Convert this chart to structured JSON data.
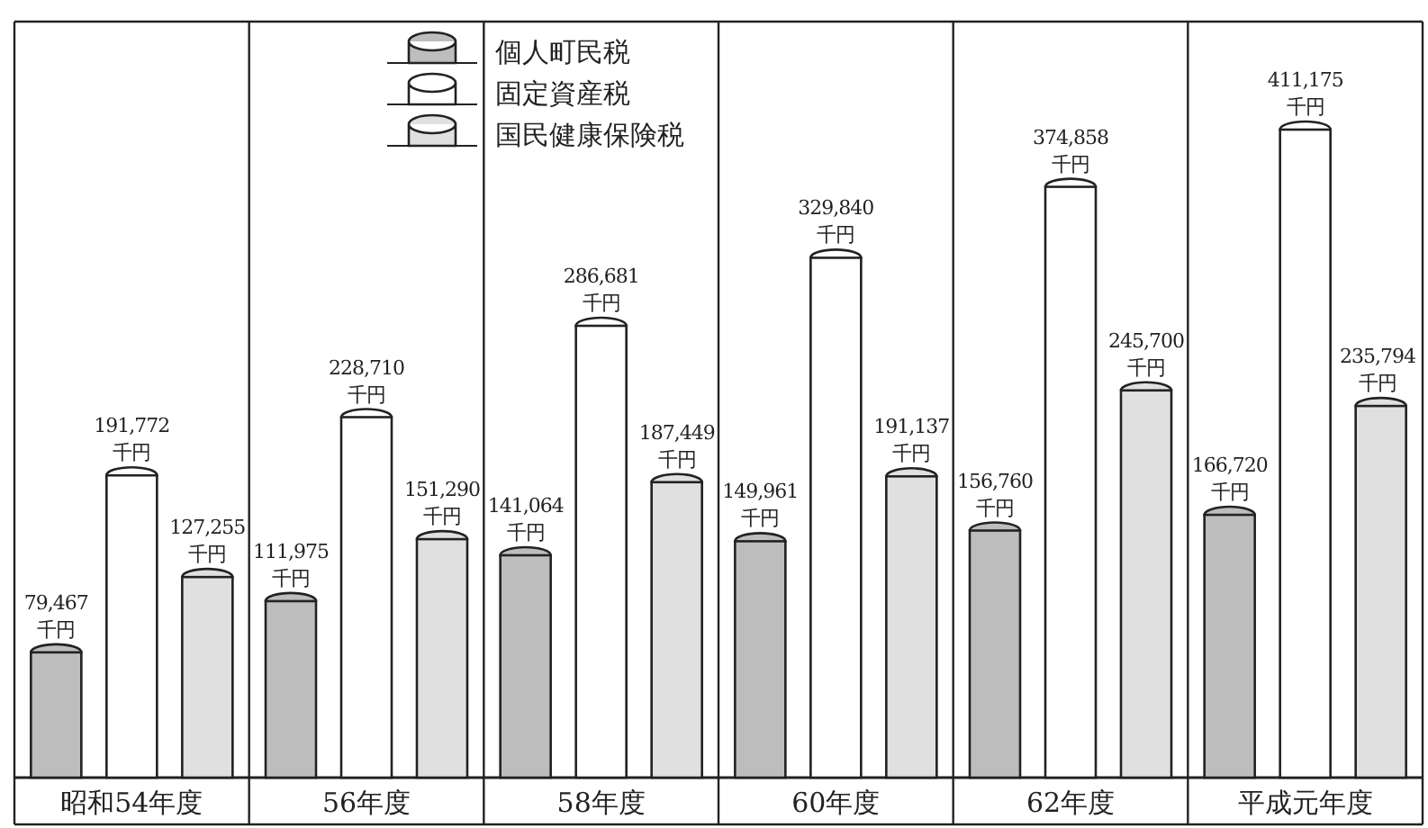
{
  "chart_data": {
    "type": "bar",
    "categories": [
      "昭和54年度",
      "56年度",
      "58年度",
      "60年度",
      "62年度",
      "平成元年度"
    ],
    "legend": "top",
    "series": [
      {
        "name": "個人町民税",
        "color": "#bdbdbd",
        "values": [
          79467,
          111975,
          141064,
          149961,
          156760,
          166720
        ],
        "value_labels": [
          "79,467 千円",
          "111,975 千円",
          "141,064 千円",
          "149,961 千円",
          "156,760 千円",
          "166,720 千円"
        ]
      },
      {
        "name": "固定資産税",
        "color": "#ffffff",
        "values": [
          191772,
          228710,
          286681,
          329840,
          374858,
          411175
        ],
        "value_labels": [
          "191,772 千円",
          "228,710 千円",
          "286,681 千円",
          "329,840 千円",
          "374,858 千円",
          "411,175 千円"
        ]
      },
      {
        "name": "国民健康保険税",
        "color": "#e0e0e0",
        "values": [
          127255,
          151290,
          187449,
          191137,
          245700,
          235794
        ],
        "value_labels": [
          "127,255 千円",
          "151,290 千円",
          "187,449 千円",
          "191,137 千円",
          "245,700 千円",
          "235,794 千円"
        ]
      }
    ]
  }
}
